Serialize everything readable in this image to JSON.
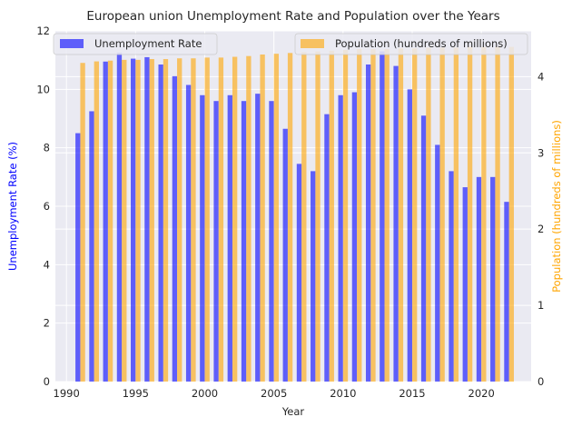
{
  "chart_data": {
    "type": "bar",
    "title": "European union Unemployment Rate and Population over the Years",
    "xlabel": "Year",
    "ylabel": "Unemployment Rate (%)",
    "y2label": "Population (hundreds of millions)",
    "xlim": [
      1989.2,
      2023.6
    ],
    "ylim": [
      0,
      12
    ],
    "y2lim": [
      0,
      4.6
    ],
    "xticks": [
      1990,
      1995,
      2000,
      2005,
      2010,
      2015,
      2020
    ],
    "yticks": [
      0,
      2,
      4,
      6,
      8,
      10,
      12
    ],
    "y2ticks": [
      0,
      1,
      2,
      3,
      4
    ],
    "grid": true,
    "x": [
      1991,
      1992,
      1993,
      1994,
      1995,
      1996,
      1997,
      1998,
      1999,
      2000,
      2001,
      2002,
      2003,
      2004,
      2005,
      2006,
      2007,
      2008,
      2009,
      2010,
      2011,
      2012,
      2013,
      2014,
      2015,
      2016,
      2017,
      2018,
      2019,
      2020,
      2021,
      2022
    ],
    "series": [
      {
        "name": "Unemployment Rate",
        "axis": "left",
        "color": "#0000ff",
        "values": [
          8.5,
          9.25,
          10.95,
          11.25,
          11.05,
          11.1,
          10.85,
          10.45,
          10.15,
          9.8,
          9.6,
          9.8,
          9.6,
          9.85,
          9.6,
          8.65,
          7.45,
          7.2,
          9.15,
          9.8,
          9.9,
          10.85,
          11.3,
          10.8,
          10.0,
          9.1,
          8.1,
          7.2,
          6.65,
          7.0,
          7.0,
          6.15
        ]
      },
      {
        "name": "Population (hundreds of millions)",
        "axis": "right",
        "color": "#ffa500",
        "values": [
          4.18,
          4.2,
          4.21,
          4.22,
          4.22,
          4.23,
          4.23,
          4.24,
          4.24,
          4.25,
          4.25,
          4.26,
          4.27,
          4.29,
          4.3,
          4.31,
          4.32,
          4.33,
          4.34,
          4.35,
          4.36,
          4.36,
          4.36,
          4.37,
          4.37,
          4.38,
          4.38,
          4.38,
          4.39,
          4.39,
          4.39,
          4.39
        ]
      }
    ],
    "legend_left": "upper-left",
    "legend_right": "upper-right",
    "colors": {
      "plot_bg": "#eaeaf2",
      "grid": "#ffffff",
      "text": "#262626",
      "left_axis_label": "#0000ff",
      "right_axis_label": "#ffa500"
    }
  }
}
